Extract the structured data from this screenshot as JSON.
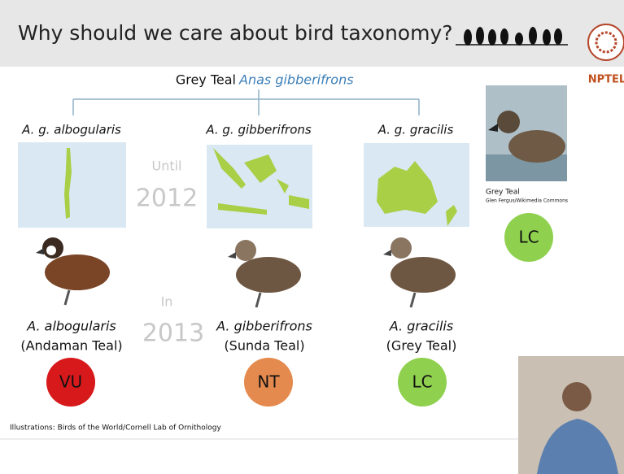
{
  "header": {
    "title": "Why should we care about bird taxonomy?",
    "logo": "NPTEL"
  },
  "species": {
    "common": "Grey Teal",
    "scientific": "Anas gibberifrons"
  },
  "subspecies": [
    {
      "label": "A. g. albogularis"
    },
    {
      "label": "A. g. gibberifrons"
    },
    {
      "label": "A. g. gracilis"
    }
  ],
  "timeline": {
    "before_label": "Until",
    "before_year": 2012,
    "after_label": "In",
    "after_year": 2013
  },
  "split_species": [
    {
      "name": "A. albogularis",
      "common": "(Andaman Teal)",
      "status": "VU"
    },
    {
      "name": "A. gibberifrons",
      "common": "(Sunda Teal)",
      "status": "NT"
    },
    {
      "name": "A. gracilis",
      "common": "(Grey Teal)",
      "status": "LC"
    }
  ],
  "photo": {
    "caption": "Grey Teal",
    "credit": "Glen Fergus/Wikimedia Commons",
    "status": "LC"
  },
  "credit": "Illustrations: Birds of the World/Cornell Lab of Ornithology"
}
